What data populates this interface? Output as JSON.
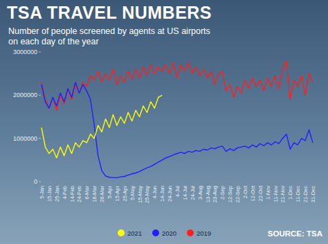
{
  "chart_data": {
    "type": "line",
    "title": "TSA TRAVEL NUMBERS",
    "subtitle": "Number of people screened by agents at US airports on each day of the year",
    "annotations": [
      "SOURCE: TSA"
    ],
    "categories": [
      "5-Jan",
      null,
      "15-Jan",
      null,
      "25-Jan",
      null,
      "4-Feb",
      null,
      "14-Feb",
      null,
      "24-Feb",
      null,
      "6-Mar",
      null,
      "16-Mar",
      null,
      "26-Mar",
      null,
      "5-Apr",
      null,
      "15-Apr",
      null,
      "25-Apr",
      null,
      "5-May",
      null,
      "15-May",
      null,
      "25-May",
      null,
      "4-Jun",
      null,
      "14-Jun",
      null,
      "24-Jun",
      null,
      "4-Jul",
      null,
      "14-Jul",
      null,
      "24-Jul",
      null,
      "3-Aug",
      null,
      "13-Aug",
      null,
      "23-Aug",
      null,
      "2-Sep",
      null,
      "12-Sep",
      null,
      "22-Sep",
      null,
      "2-Oct",
      null,
      "12-Oct",
      null,
      "22-Oct",
      null,
      "1-Nov",
      null,
      "11-Nov",
      null,
      "21-Nov",
      null,
      "1-Dec",
      null,
      "11-Dec",
      null,
      "21-Dec",
      null,
      "31-Dec"
    ],
    "series": [
      {
        "name": "2021",
        "color": "#ffff00",
        "values": [
          1250000,
          800000,
          650000,
          750000,
          550000,
          800000,
          600000,
          850000,
          650000,
          900000,
          800000,
          950000,
          900000,
          1100000,
          1000000,
          1300000,
          1150000,
          1450000,
          1250000,
          1550000,
          1300000,
          1500000,
          1350000,
          1600000,
          1400000,
          1650000,
          1500000,
          1750000,
          1600000,
          1850000,
          1700000,
          1950000,
          2000000,
          null,
          null,
          null,
          null,
          null,
          null,
          null,
          null,
          null,
          null,
          null,
          null,
          null,
          null,
          null,
          null,
          null,
          null,
          null,
          null,
          null,
          null,
          null,
          null,
          null,
          null,
          null,
          null,
          null,
          null,
          null,
          null,
          null,
          null,
          null,
          null,
          null,
          null,
          null,
          null
        ]
      },
      {
        "name": "2020",
        "color": "#1f1fff",
        "values": [
          2250000,
          1850000,
          1700000,
          1950000,
          1750000,
          2050000,
          1850000,
          2150000,
          1950000,
          2300000,
          2050000,
          2250000,
          2100000,
          1900000,
          1300000,
          600000,
          250000,
          130000,
          100000,
          95000,
          90000,
          110000,
          120000,
          150000,
          180000,
          200000,
          230000,
          280000,
          320000,
          350000,
          400000,
          450000,
          500000,
          550000,
          580000,
          620000,
          650000,
          680000,
          650000,
          700000,
          680000,
          720000,
          700000,
          750000,
          730000,
          780000,
          760000,
          800000,
          820000,
          700000,
          760000,
          720000,
          780000,
          800000,
          820000,
          780000,
          850000,
          800000,
          880000,
          830000,
          900000,
          850000,
          920000,
          880000,
          1000000,
          1100000,
          750000,
          900000,
          850000,
          1000000,
          950000,
          1200000,
          900000
        ]
      },
      {
        "name": "2019",
        "color": "#ff1f1f",
        "values": [
          2300000,
          1900000,
          1700000,
          1950000,
          1650000,
          2000000,
          1800000,
          2150000,
          1900000,
          2250000,
          2050000,
          2300000,
          2200000,
          2450000,
          2350000,
          2550000,
          2300000,
          2500000,
          2350000,
          2600000,
          2250000,
          2450000,
          2300000,
          2550000,
          2350000,
          2600000,
          2400000,
          2650000,
          2450000,
          2700000,
          2500000,
          2650000,
          2550000,
          2700000,
          2500000,
          2750000,
          2400000,
          2700000,
          2550000,
          2750000,
          2500000,
          2650000,
          2450000,
          2600000,
          2400000,
          2550000,
          2250000,
          2500000,
          2550000,
          2100000,
          2250000,
          1950000,
          2200000,
          2050000,
          2350000,
          2150000,
          2400000,
          2200000,
          2350000,
          2100000,
          2400000,
          2200000,
          2450000,
          2150000,
          2600000,
          2800000,
          1900000,
          2350000,
          2200000,
          2450000,
          2000000,
          2500000,
          2300000
        ]
      }
    ],
    "ylim": [
      0,
      3000000
    ],
    "yticks": [
      0,
      1000000,
      2000000,
      3000000
    ],
    "grid": false,
    "legend": "bottom"
  }
}
